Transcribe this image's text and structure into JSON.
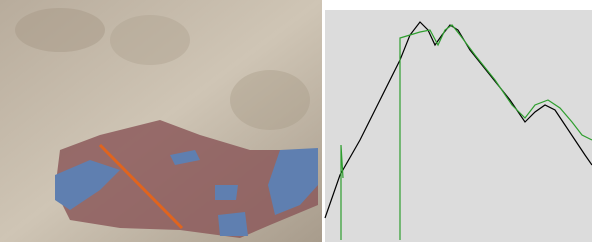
{
  "chart_data": {
    "type": "line",
    "xlim": [
      0,
      267
    ],
    "ylim": [
      0,
      232
    ],
    "series": [
      {
        "color": "#000000",
        "x": [
          0,
          15,
          35,
          55,
          75,
          85,
          95,
          103,
          110,
          117,
          125,
          133,
          145,
          165,
          185,
          200,
          210,
          220,
          230,
          240,
          250,
          260,
          267
        ],
        "values": [
          24,
          67,
          102,
          142,
          182,
          207,
          220,
          212,
          197,
          207,
          217,
          212,
          192,
          167,
          142,
          120,
          130,
          137,
          132,
          117,
          102,
          87,
          77
        ]
      },
      {
        "color": "#2e9e2e",
        "x": [
          16,
          16,
          18,
          19,
          75,
          75,
          85,
          95,
          105,
          113,
          120,
          127,
          135,
          150,
          170,
          187,
          200,
          210,
          223,
          235,
          247,
          257,
          267
        ],
        "values": [
          2,
          97,
          64,
          null,
          2,
          204,
          207,
          210,
          212,
          197,
          212,
          217,
          207,
          187,
          162,
          137,
          124,
          137,
          142,
          134,
          120,
          107,
          102
        ]
      }
    ]
  }
}
